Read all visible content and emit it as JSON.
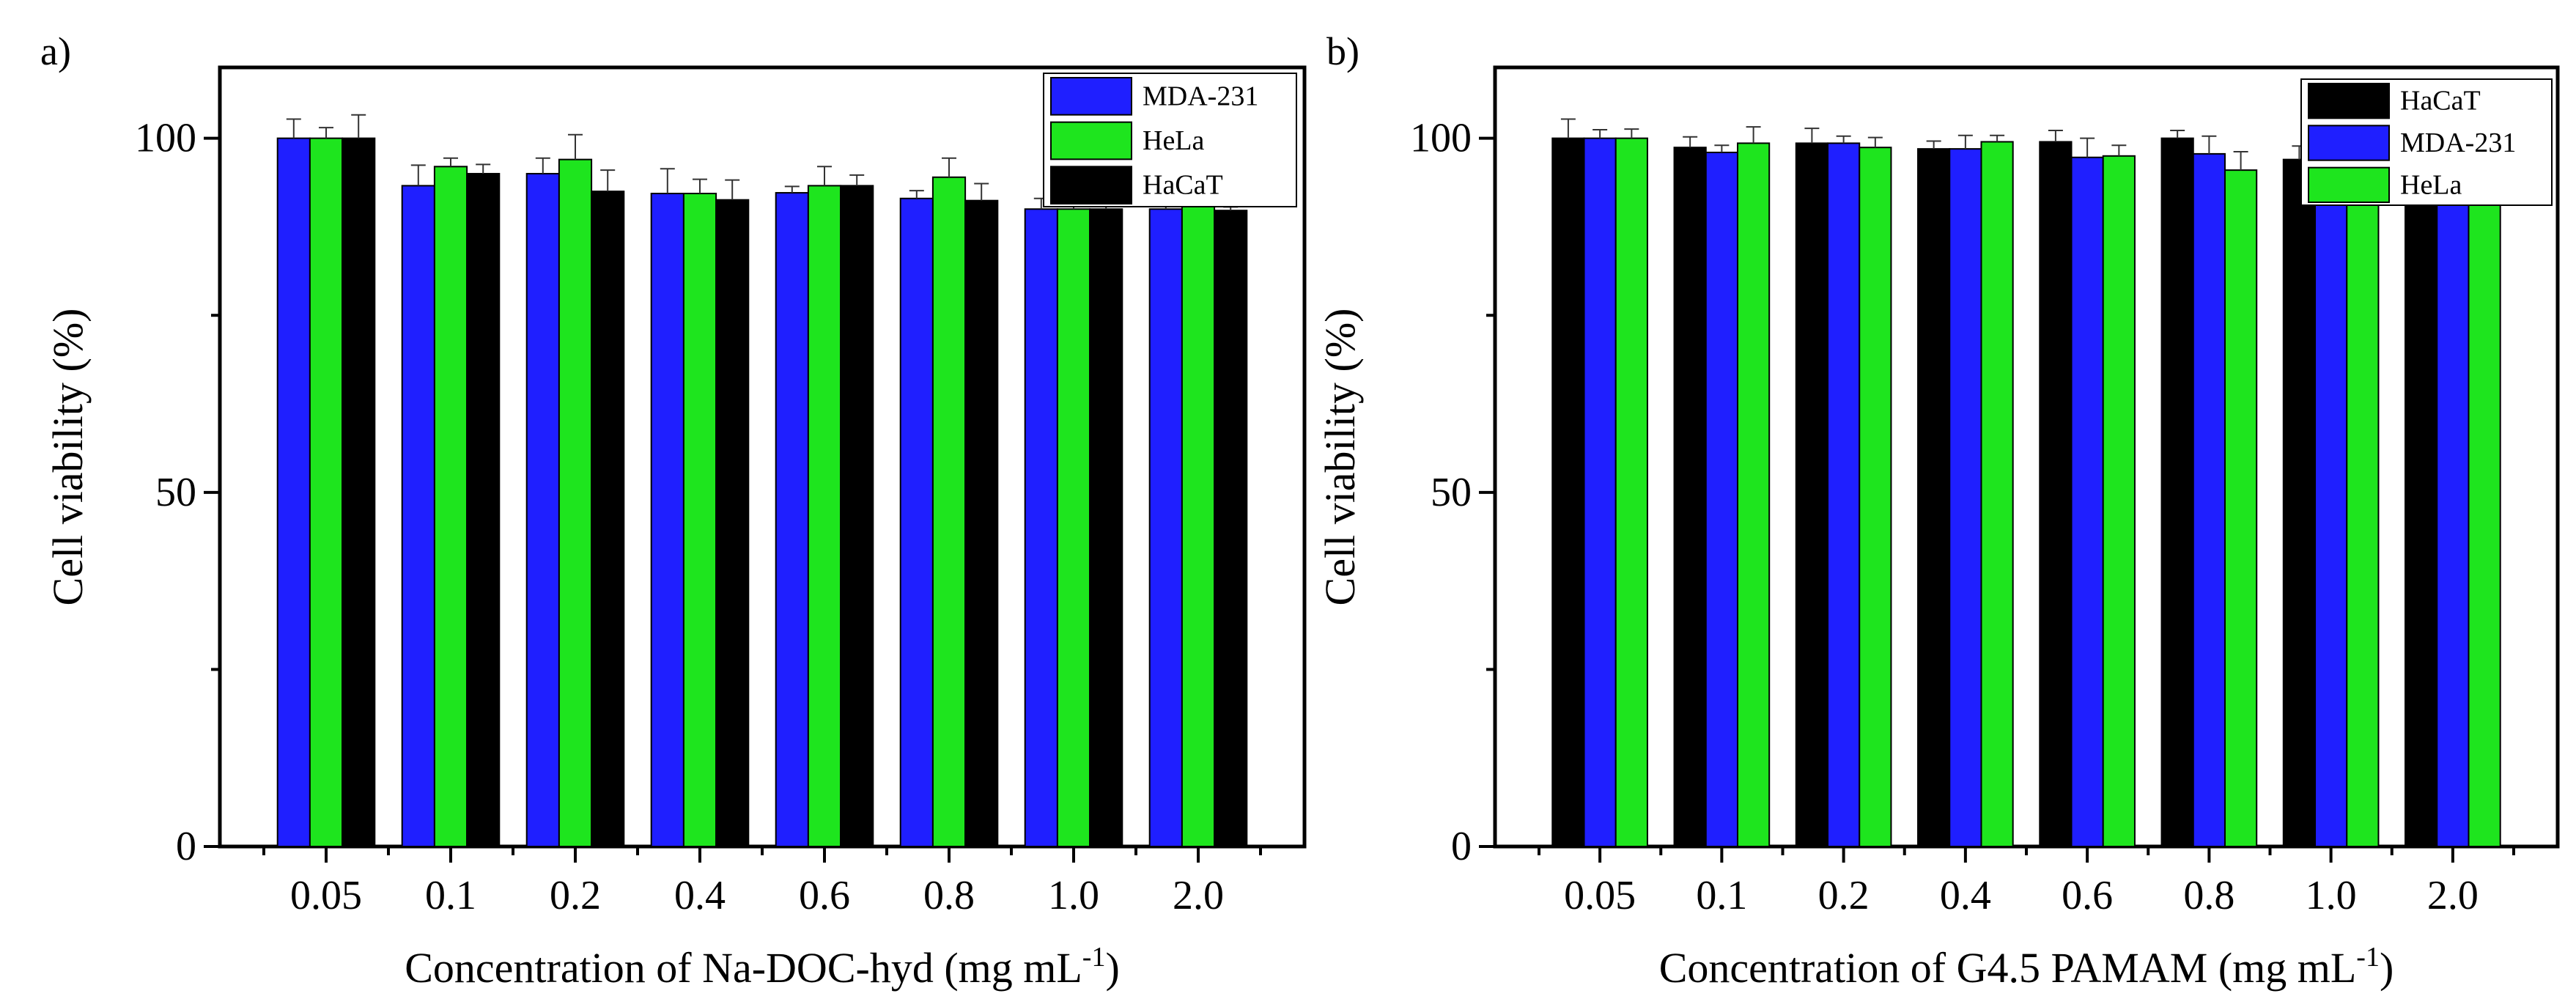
{
  "chart_data": [
    {
      "type": "bar",
      "panel_label": "a)",
      "categories": [
        "0.05",
        "0.1",
        "0.2",
        "0.4",
        "0.6",
        "0.8",
        "1.0",
        "2.0"
      ],
      "xlabel": "Concentration of Na-DOC-hyd (mg mL",
      "xlabel_sup": "-1",
      "xlabel_close": ")",
      "ylabel": "Cell viability (%)",
      "ylim": [
        0,
        110
      ],
      "yticks": [
        0,
        50,
        100
      ],
      "grid": false,
      "legend_position": "top-right",
      "series": [
        {
          "name": "MDA-231",
          "color": "#1f1fff",
          "values": [
            100,
            93.3,
            95,
            92.2,
            92.3,
            91.5,
            90,
            90
          ],
          "errors": [
            2.7,
            2.9,
            2.2,
            3.5,
            0.9,
            1.1,
            1.5,
            1.2
          ]
        },
        {
          "name": "HeLa",
          "color": "#1ee51e",
          "values": [
            100,
            96,
            97,
            92.2,
            93.3,
            94.5,
            90,
            90.5
          ],
          "errors": [
            1.5,
            1.2,
            3.5,
            2.0,
            2.7,
            2.7,
            0.8,
            1.0
          ]
        },
        {
          "name": "HaCaT",
          "color": "#000000",
          "values": [
            100,
            95,
            92.5,
            91.3,
            93.3,
            91.2,
            90,
            89.8
          ],
          "errors": [
            3.3,
            1.3,
            3.0,
            2.8,
            1.5,
            2.4,
            0.8,
            0.5
          ]
        }
      ]
    },
    {
      "type": "bar",
      "panel_label": "b)",
      "categories": [
        "0.05",
        "0.1",
        "0.2",
        "0.4",
        "0.6",
        "0.8",
        "1.0",
        "2.0"
      ],
      "xlabel": "Concentration of G4.5 PAMAM (mg mL",
      "xlabel_sup": "-1",
      "xlabel_close": ")",
      "ylabel": "Cell viability (%)",
      "ylim": [
        0,
        110
      ],
      "yticks": [
        0,
        50,
        100
      ],
      "grid": false,
      "legend_position": "top-right",
      "series": [
        {
          "name": "HaCaT",
          "color": "#000000",
          "values": [
            100,
            98.7,
            99.3,
            98.5,
            99.5,
            100,
            97,
            94
          ],
          "errors": [
            2.7,
            1.5,
            2.1,
            1.1,
            1.6,
            1.1,
            1.9,
            1.5
          ]
        },
        {
          "name": "MDA-231",
          "color": "#1f1fff",
          "values": [
            100,
            98,
            99.3,
            98.5,
            97.3,
            97.8,
            94,
            93
          ],
          "errors": [
            1.2,
            1.0,
            1.0,
            1.9,
            2.7,
            2.5,
            1.5,
            1.5
          ]
        },
        {
          "name": "HeLa",
          "color": "#1ee51e",
          "values": [
            100,
            99.3,
            98.7,
            99.5,
            97.5,
            95.5,
            93,
            92.5
          ],
          "errors": [
            1.3,
            2.3,
            1.4,
            0.9,
            1.5,
            2.6,
            1.5,
            1.2
          ]
        }
      ]
    }
  ]
}
